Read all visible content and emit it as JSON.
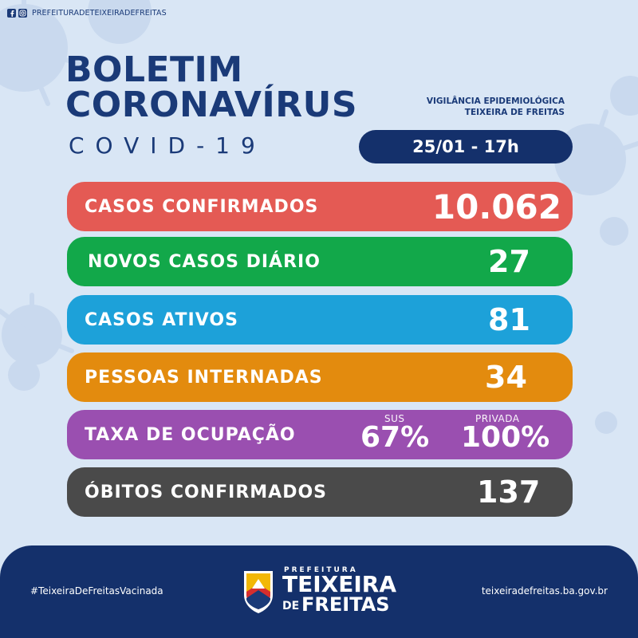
{
  "social": {
    "handle": "PREFEITURADETEIXEIRADEFREITAS",
    "icons": [
      "facebook-icon",
      "instagram-icon"
    ]
  },
  "header": {
    "title_line1": "BOLETIM",
    "title_line2": "CORONAVÍRUS",
    "title_line3": "COVID-19",
    "agency_line1": "VIGILÂNCIA EPIDEMIOLÓGICA",
    "agency_line2": "TEIXEIRA DE FREITAS",
    "date": "25/01 - 17h"
  },
  "stats": {
    "confirmed": {
      "label": "CASOS CONFIRMADOS",
      "value": "10.062",
      "color": "#e45a54"
    },
    "new_daily": {
      "label": "NOVOS CASOS DIÁRIO",
      "value": "27",
      "color": "#12a84a"
    },
    "active": {
      "label": "CASOS ATIVOS",
      "value": "81",
      "color": "#1da1d9"
    },
    "hospitalized": {
      "label": "PESSOAS INTERNADAS",
      "value": "34",
      "color": "#e38b0e"
    },
    "occupancy": {
      "label": "TAXA DE OCUPAÇÃO",
      "sus_label": "SUS",
      "sus_value": "67%",
      "private_label": "PRIVADA",
      "private_value": "100%",
      "color": "#9a4fb0"
    },
    "deaths": {
      "label": "ÓBITOS CONFIRMADOS",
      "value": "137",
      "color": "#4a4a4a"
    }
  },
  "footer": {
    "hashtag": "#TeixeiraDeFreitasVacinada",
    "website": "teixeiradefreitas.ba.gov.br",
    "logo": {
      "prefeitura": "PREFEITURA",
      "teixeira": "TEIXEIRA",
      "de": "DE",
      "freitas": "FREITAS"
    },
    "background": "#14306b"
  }
}
